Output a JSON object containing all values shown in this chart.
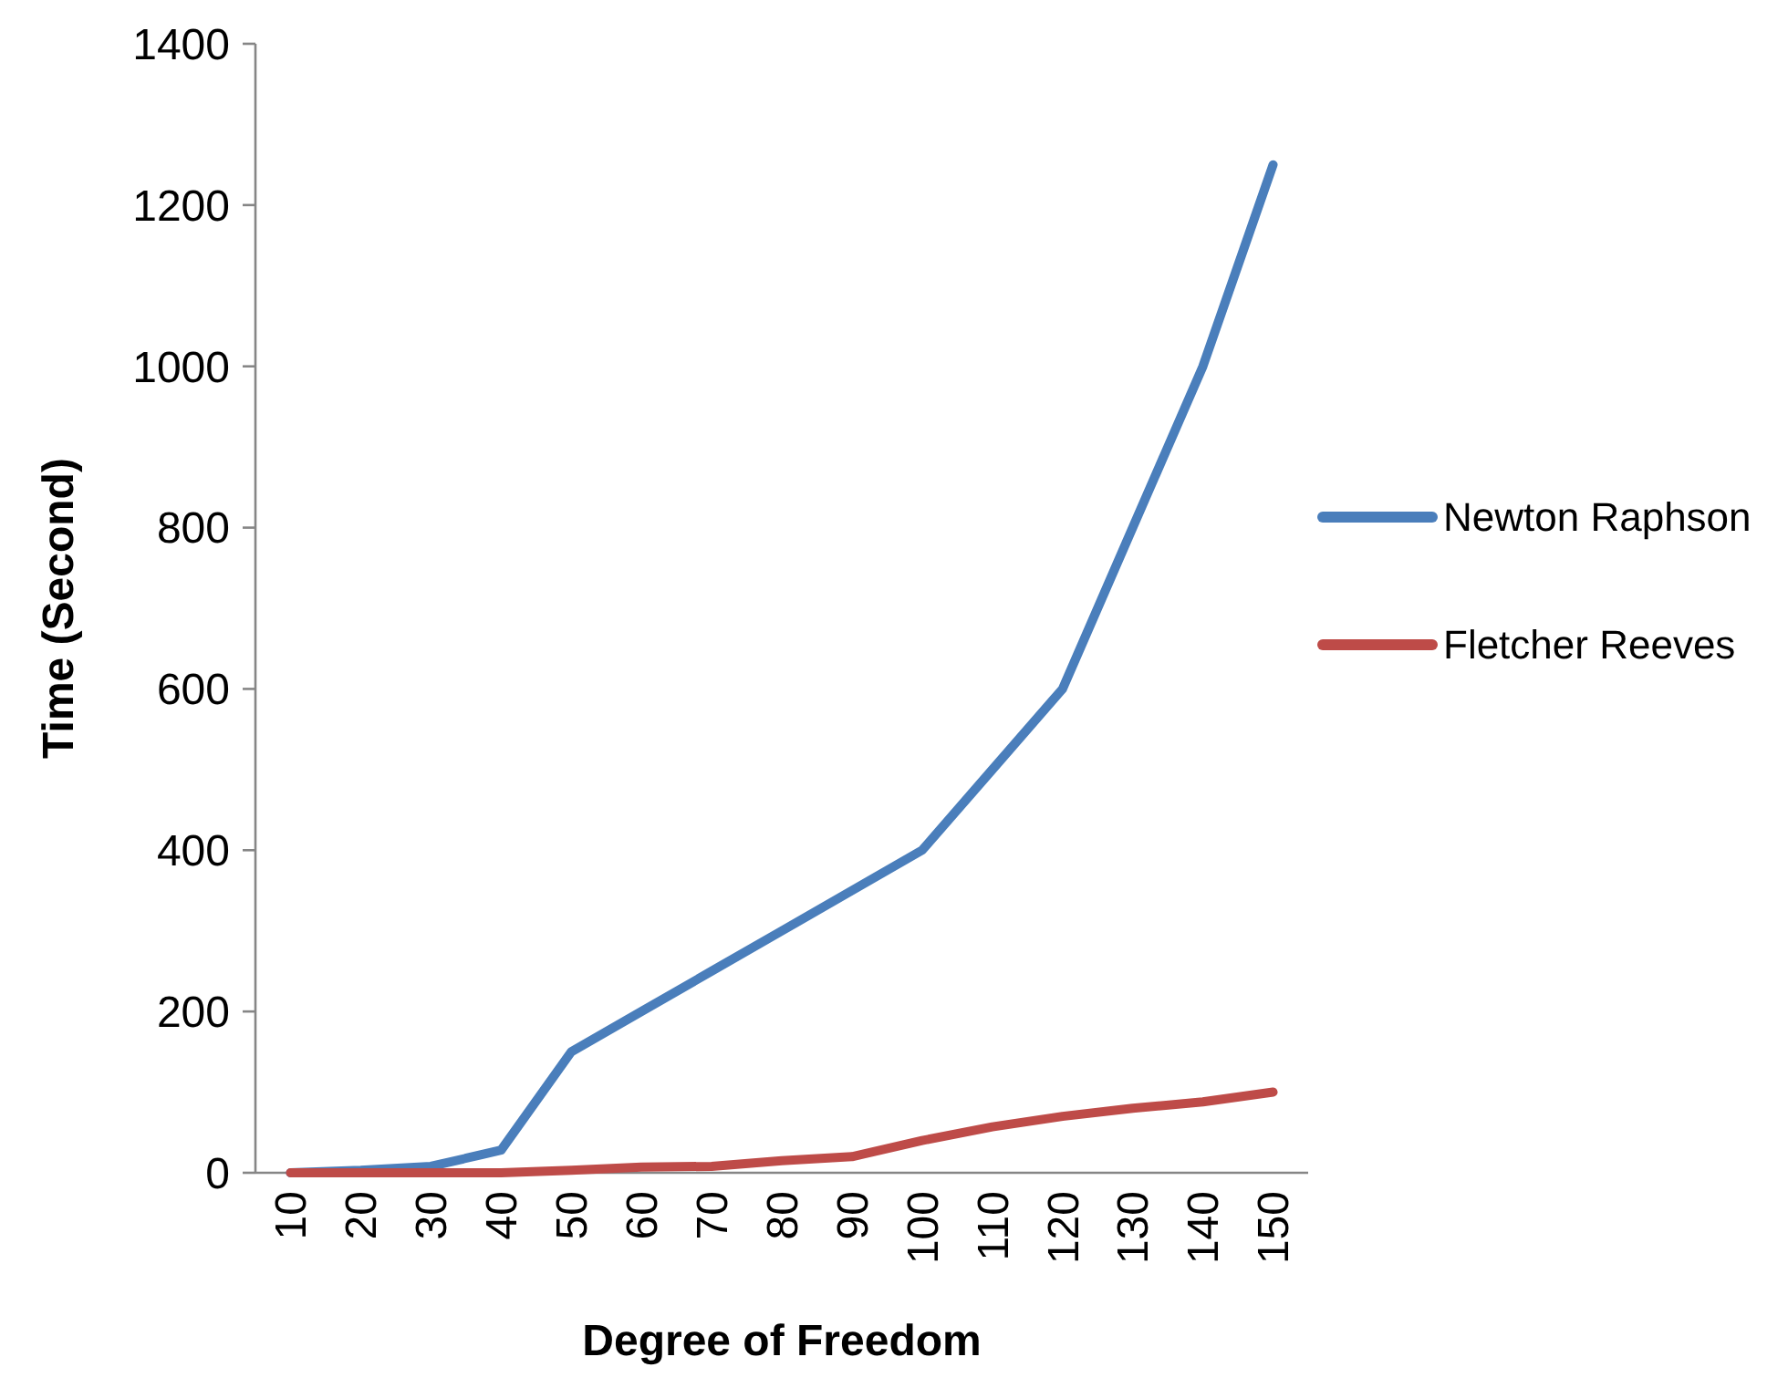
{
  "chart_data": {
    "type": "line",
    "xlabel": "Degree of Freedom",
    "ylabel": "Time (Second)",
    "categories": [
      "10",
      "20",
      "30",
      "40",
      "50",
      "60",
      "70",
      "80",
      "90",
      "100",
      "110",
      "120",
      "130",
      "140",
      "150"
    ],
    "series": [
      {
        "name": "Newton Raphson",
        "color": "#4a7ebb",
        "values": [
          0,
          3,
          8,
          28,
          150,
          200,
          250,
          300,
          350,
          400,
          500,
          600,
          800,
          1000,
          1250
        ]
      },
      {
        "name": "Fletcher Reeves",
        "color": "#be4b48",
        "values": [
          0,
          0,
          0,
          0,
          3,
          7,
          8,
          15,
          20,
          40,
          57,
          70,
          80,
          88,
          100
        ]
      }
    ],
    "ylim": [
      0,
      1400
    ],
    "yticks": [
      0,
      200,
      400,
      600,
      800,
      1000,
      1200,
      1400
    ],
    "grid": false,
    "legend": "right",
    "marker": "none",
    "line_style": "solid"
  }
}
